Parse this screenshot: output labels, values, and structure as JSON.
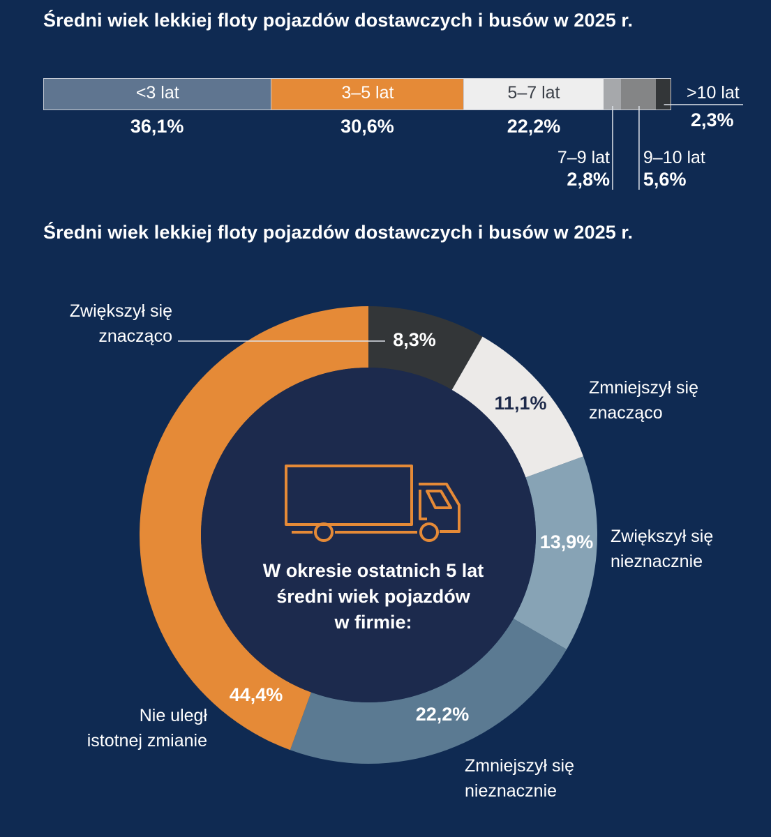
{
  "chart_data": [
    {
      "type": "bar",
      "orientation": "horizontal-stacked",
      "title": "Średni wiek lekkiej floty pojazdów dostawczych i busów w 2025 r.",
      "categories": [
        "<3 lat",
        "3–5 lat",
        "5–7 lat",
        "7–9 lat",
        "9–10 lat",
        ">10 lat"
      ],
      "values": [
        36.1,
        30.6,
        22.2,
        2.8,
        5.6,
        2.3
      ],
      "value_labels": [
        "36,1%",
        "30,6%",
        "22,2%",
        "2,8%",
        "5,6%",
        "2,3%"
      ],
      "colors": [
        "#5f7590",
        "#e58a37",
        "#eeeeee",
        "#a6a8ab",
        "#848586",
        "#333638"
      ]
    },
    {
      "type": "pie",
      "variant": "donut",
      "title": "Średni wiek lekkiej floty pojazdów dostawczych i busów w 2025 r.",
      "center_text": [
        "W okresie ostatnich 5 lat",
        "średni wiek pojazdów",
        "w firmie:"
      ],
      "categories": [
        [
          "Zwiększył się",
          "znacząco"
        ],
        [
          "Zmniejszył się",
          "znacząco"
        ],
        [
          "Zwiększył się",
          "nieznacznie"
        ],
        [
          "Zmniejszył się",
          "nieznacznie"
        ],
        [
          "Nie uległ",
          "istotnej zmianie"
        ]
      ],
      "values": [
        8.3,
        11.1,
        13.9,
        22.2,
        44.4
      ],
      "value_labels": [
        "8,3%",
        "11,1%",
        "13,9%",
        "22,2%",
        "44,4%"
      ],
      "colors": [
        "#333638",
        "#eceae8",
        "#87a3b5",
        "#5b7a92",
        "#e58a37"
      ],
      "label_colors": [
        "#ffffff",
        "#1e2a4a",
        "#ffffff",
        "#ffffff",
        "#ffffff"
      ]
    }
  ],
  "theme": {
    "background": "#0f2a52",
    "center_fill": "#1c2a4d",
    "truck_color": "#e58a37"
  }
}
